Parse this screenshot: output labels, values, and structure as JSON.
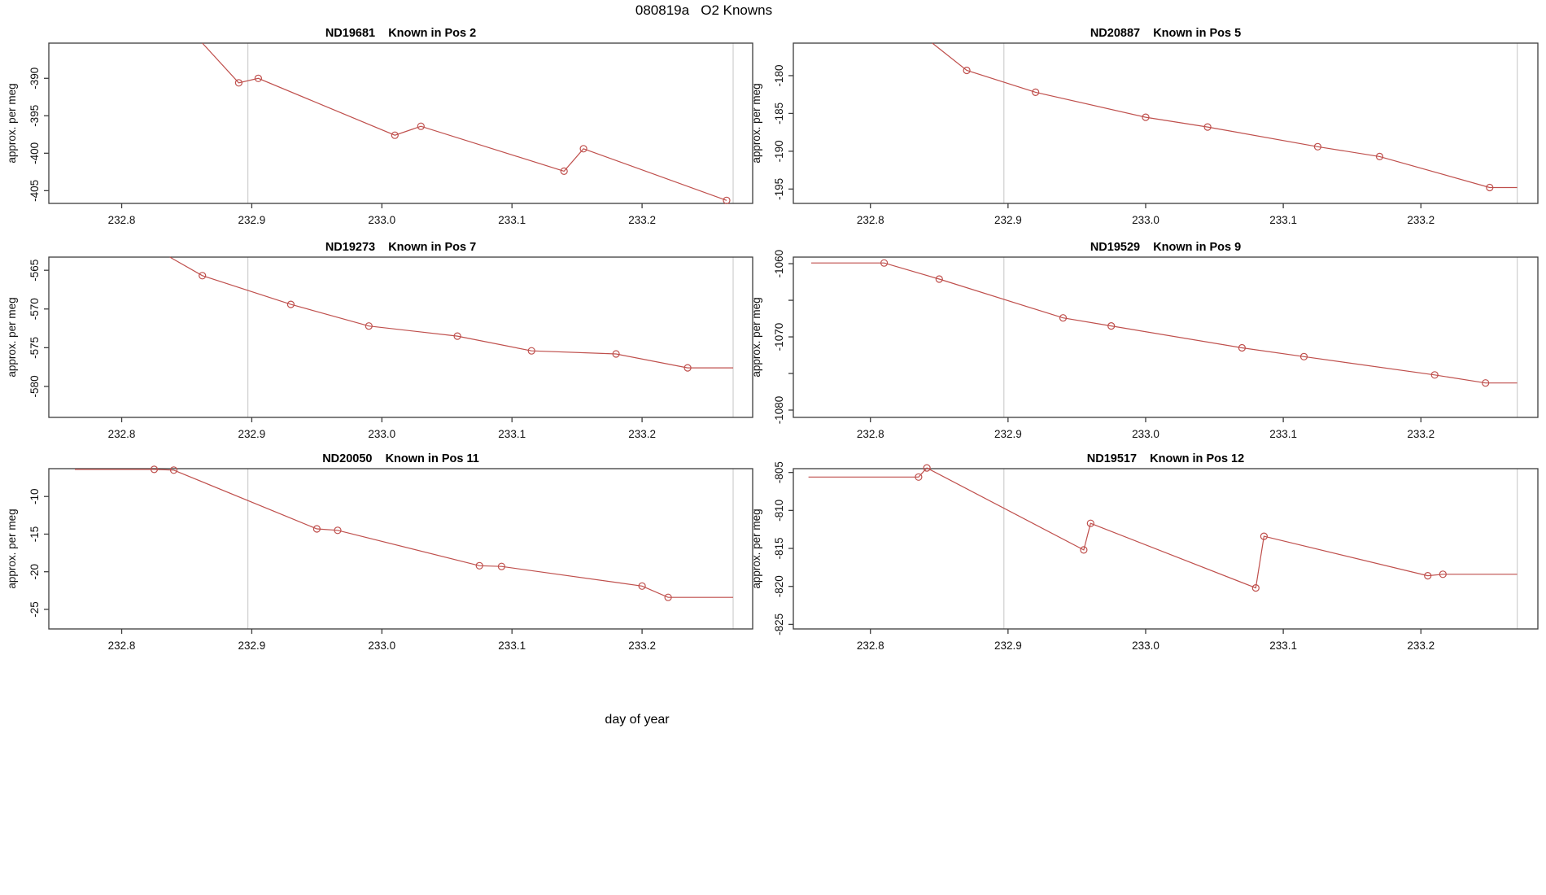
{
  "page": {
    "title": "080819a   O2 Knowns",
    "xlabel": "day of year"
  },
  "style": {
    "line_color": "#bf4f4c",
    "grid_color": "#cfcfcf",
    "axis_color": "#3c3c3c",
    "text_color": "#111111"
  },
  "x_axis": {
    "range": [
      232.744,
      233.285
    ],
    "tick_values": [
      232.8,
      232.9,
      233.0,
      233.1,
      233.2
    ],
    "tick_labels": [
      "232.8",
      "232.9",
      "233.0",
      "233.1",
      "233.2"
    ],
    "vlines": [
      232.897,
      233.27
    ]
  },
  "chart_data": [
    {
      "type": "line",
      "title": "ND19681    Known in Pos 2",
      "ylabel": "approx. per meg",
      "ylim": [
        -385.3,
        -406.7
      ],
      "ytick_values": [
        -390,
        -395,
        -400,
        -405
      ],
      "ytick_labels": [
        "-390",
        "-395",
        "-400",
        "-405"
      ],
      "line": [
        [
          232.862,
          -385.3
        ],
        [
          232.89,
          -390.6
        ],
        [
          232.905,
          -390.0
        ],
        [
          233.01,
          -397.6
        ],
        [
          233.03,
          -396.4
        ],
        [
          233.14,
          -402.4
        ],
        [
          233.155,
          -399.4
        ],
        [
          233.265,
          -406.3
        ]
      ],
      "markers": [
        [
          232.89,
          -390.6
        ],
        [
          232.905,
          -390.0
        ],
        [
          233.01,
          -397.6
        ],
        [
          233.03,
          -396.4
        ],
        [
          233.14,
          -402.4
        ],
        [
          233.155,
          -399.4
        ],
        [
          233.265,
          -406.3
        ]
      ]
    },
    {
      "type": "line",
      "title": "ND20887    Known in Pos 5",
      "ylabel": "approx. per meg",
      "ylim": [
        -175.7,
        -196.9
      ],
      "ytick_values": [
        -180,
        -185,
        -190,
        -195
      ],
      "ytick_labels": [
        "-180",
        "-185",
        "-190",
        "-195"
      ],
      "line": [
        [
          232.845,
          -175.7
        ],
        [
          232.87,
          -179.3
        ],
        [
          232.92,
          -182.2
        ],
        [
          233.0,
          -185.5
        ],
        [
          233.045,
          -186.8
        ],
        [
          233.125,
          -189.4
        ],
        [
          233.17,
          -190.7
        ],
        [
          233.25,
          -194.8
        ],
        [
          233.27,
          -194.8
        ]
      ],
      "markers": [
        [
          232.87,
          -179.3
        ],
        [
          232.92,
          -182.2
        ],
        [
          233.0,
          -185.5
        ],
        [
          233.045,
          -186.8
        ],
        [
          233.125,
          -189.4
        ],
        [
          233.17,
          -190.7
        ],
        [
          233.25,
          -194.8
        ]
      ]
    },
    {
      "type": "line",
      "title": "ND19273    Known in Pos 7",
      "ylabel": "approx. per meg",
      "ylim": [
        -563.3,
        -584.0
      ],
      "ytick_values": [
        -565,
        -570,
        -575,
        -580
      ],
      "ytick_labels": [
        "-565",
        "-570",
        "-575",
        "-580"
      ],
      "line": [
        [
          232.837,
          -563.3
        ],
        [
          232.862,
          -565.7
        ],
        [
          232.93,
          -569.4
        ],
        [
          232.99,
          -572.2
        ],
        [
          233.058,
          -573.5
        ],
        [
          233.115,
          -575.4
        ],
        [
          233.18,
          -575.8
        ],
        [
          233.235,
          -577.6
        ],
        [
          233.27,
          -577.6
        ]
      ],
      "markers": [
        [
          232.862,
          -565.7
        ],
        [
          232.93,
          -569.4
        ],
        [
          232.99,
          -572.2
        ],
        [
          233.058,
          -573.5
        ],
        [
          233.115,
          -575.4
        ],
        [
          233.18,
          -575.8
        ],
        [
          233.235,
          -577.6
        ]
      ]
    },
    {
      "type": "line",
      "title": "ND19529    Known in Pos 9",
      "ylabel": "approx. per meg",
      "ylim": [
        -1059.1,
        -1081.0
      ],
      "ytick_values": [
        -1060,
        -1065,
        -1070,
        -1075,
        -1080
      ],
      "ytick_labels": [
        "-1060",
        "",
        "-1070",
        "",
        "-1080"
      ],
      "line": [
        [
          232.757,
          -1059.9
        ],
        [
          232.81,
          -1059.9
        ],
        [
          232.85,
          -1062.1
        ],
        [
          232.94,
          -1067.4
        ],
        [
          232.975,
          -1068.5
        ],
        [
          233.07,
          -1071.5
        ],
        [
          233.115,
          -1072.7
        ],
        [
          233.21,
          -1075.2
        ],
        [
          233.247,
          -1076.3
        ],
        [
          233.27,
          -1076.3
        ]
      ],
      "markers": [
        [
          232.81,
          -1059.9
        ],
        [
          232.85,
          -1062.1
        ],
        [
          232.94,
          -1067.4
        ],
        [
          232.975,
          -1068.5
        ],
        [
          233.07,
          -1071.5
        ],
        [
          233.115,
          -1072.7
        ],
        [
          233.21,
          -1075.2
        ],
        [
          233.247,
          -1076.3
        ]
      ]
    },
    {
      "type": "line",
      "title": "ND20050    Known in Pos 11",
      "ylabel": "approx. per meg",
      "ylim": [
        -6.3,
        -27.6
      ],
      "ytick_values": [
        -10,
        -15,
        -20,
        -25
      ],
      "ytick_labels": [
        "-10",
        "-15",
        "-20",
        "-25"
      ],
      "line": [
        [
          232.764,
          -6.4
        ],
        [
          232.825,
          -6.4
        ],
        [
          232.84,
          -6.5
        ],
        [
          232.95,
          -14.3
        ],
        [
          232.966,
          -14.5
        ],
        [
          233.075,
          -19.2
        ],
        [
          233.092,
          -19.3
        ],
        [
          233.2,
          -21.9
        ],
        [
          233.22,
          -23.4
        ],
        [
          233.27,
          -23.4
        ]
      ],
      "markers": [
        [
          232.825,
          -6.4
        ],
        [
          232.84,
          -6.5
        ],
        [
          232.95,
          -14.3
        ],
        [
          232.966,
          -14.5
        ],
        [
          233.075,
          -19.2
        ],
        [
          233.092,
          -19.3
        ],
        [
          233.2,
          -21.9
        ],
        [
          233.22,
          -23.4
        ]
      ]
    },
    {
      "type": "line",
      "title": "ND19517    Known in Pos 12",
      "ylabel": "approx. per meg",
      "ylim": [
        -804.5,
        -825.6
      ],
      "ytick_values": [
        -805,
        -810,
        -815,
        -820,
        -825
      ],
      "ytick_labels": [
        "-805",
        "-810",
        "-815",
        "-820",
        "-825"
      ],
      "line": [
        [
          232.755,
          -805.6
        ],
        [
          232.835,
          -805.6
        ],
        [
          232.841,
          -804.4
        ],
        [
          232.955,
          -815.2
        ],
        [
          232.96,
          -811.7
        ],
        [
          233.08,
          -820.2
        ],
        [
          233.086,
          -813.4
        ],
        [
          233.205,
          -818.6
        ],
        [
          233.216,
          -818.4
        ],
        [
          233.27,
          -818.4
        ]
      ],
      "markers": [
        [
          232.835,
          -805.6
        ],
        [
          232.841,
          -804.4
        ],
        [
          232.955,
          -815.2
        ],
        [
          232.96,
          -811.7
        ],
        [
          233.08,
          -820.2
        ],
        [
          233.086,
          -813.4
        ],
        [
          233.205,
          -818.6
        ],
        [
          233.216,
          -818.4
        ]
      ]
    }
  ]
}
